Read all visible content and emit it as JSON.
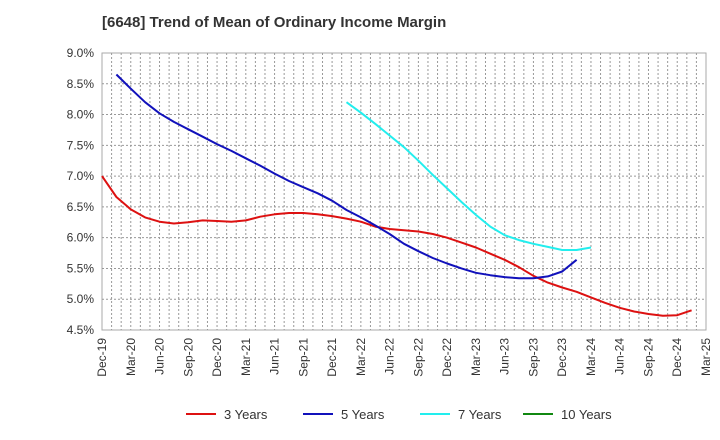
{
  "chart_data": {
    "type": "line",
    "title": "[6648]  Trend of Mean of Ordinary Income Margin",
    "xlabel": "",
    "ylabel": "",
    "ylim": [
      4.5,
      9.0
    ],
    "y_ticks": [
      "4.5%",
      "5.0%",
      "5.5%",
      "6.0%",
      "6.5%",
      "7.0%",
      "7.5%",
      "8.0%",
      "8.5%",
      "9.0%"
    ],
    "x_ticks": [
      "Dec-19",
      "Mar-20",
      "Jun-20",
      "Sep-20",
      "Dec-20",
      "Mar-21",
      "Jun-21",
      "Sep-21",
      "Dec-21",
      "Mar-22",
      "Jun-22",
      "Sep-22",
      "Dec-22",
      "Mar-23",
      "Jun-23",
      "Sep-23",
      "Dec-23",
      "Mar-24",
      "Jun-24",
      "Sep-24",
      "Dec-24",
      "Mar-25"
    ],
    "grid": true,
    "legend_position": "bottom",
    "series": [
      {
        "name": "3 Years",
        "color": "#dd1111",
        "start_index": 0,
        "values": [
          7.0,
          6.66,
          6.46,
          6.33,
          6.26,
          6.23,
          6.25,
          6.28,
          6.27,
          6.26,
          6.28,
          6.34,
          6.38,
          6.4,
          6.4,
          6.38,
          6.35,
          6.31,
          6.26,
          6.18,
          6.14,
          6.12,
          6.1,
          6.06,
          6.0,
          5.92,
          5.84,
          5.74,
          5.64,
          5.52,
          5.38,
          5.27,
          5.19,
          5.12,
          5.03,
          4.94,
          4.86,
          4.8,
          4.76,
          4.73,
          4.74,
          4.82
        ]
      },
      {
        "name": "5 Years",
        "color": "#1111bb",
        "start_index": 1,
        "values": [
          8.65,
          8.42,
          8.2,
          8.02,
          7.88,
          7.76,
          7.64,
          7.52,
          7.41,
          7.29,
          7.17,
          7.04,
          6.92,
          6.82,
          6.72,
          6.6,
          6.45,
          6.33,
          6.2,
          6.06,
          5.9,
          5.78,
          5.67,
          5.58,
          5.5,
          5.43,
          5.39,
          5.36,
          5.34,
          5.34,
          5.37,
          5.45,
          5.64
        ]
      },
      {
        "name": "7 Years",
        "color": "#22eeee",
        "start_index": 17,
        "values": [
          8.2,
          8.03,
          7.85,
          7.66,
          7.47,
          7.25,
          7.02,
          6.8,
          6.58,
          6.37,
          6.18,
          6.04,
          5.96,
          5.9,
          5.85,
          5.8,
          5.8,
          5.84
        ]
      },
      {
        "name": "10 Years",
        "color": "#118811",
        "start_index": 0,
        "values": []
      }
    ]
  }
}
